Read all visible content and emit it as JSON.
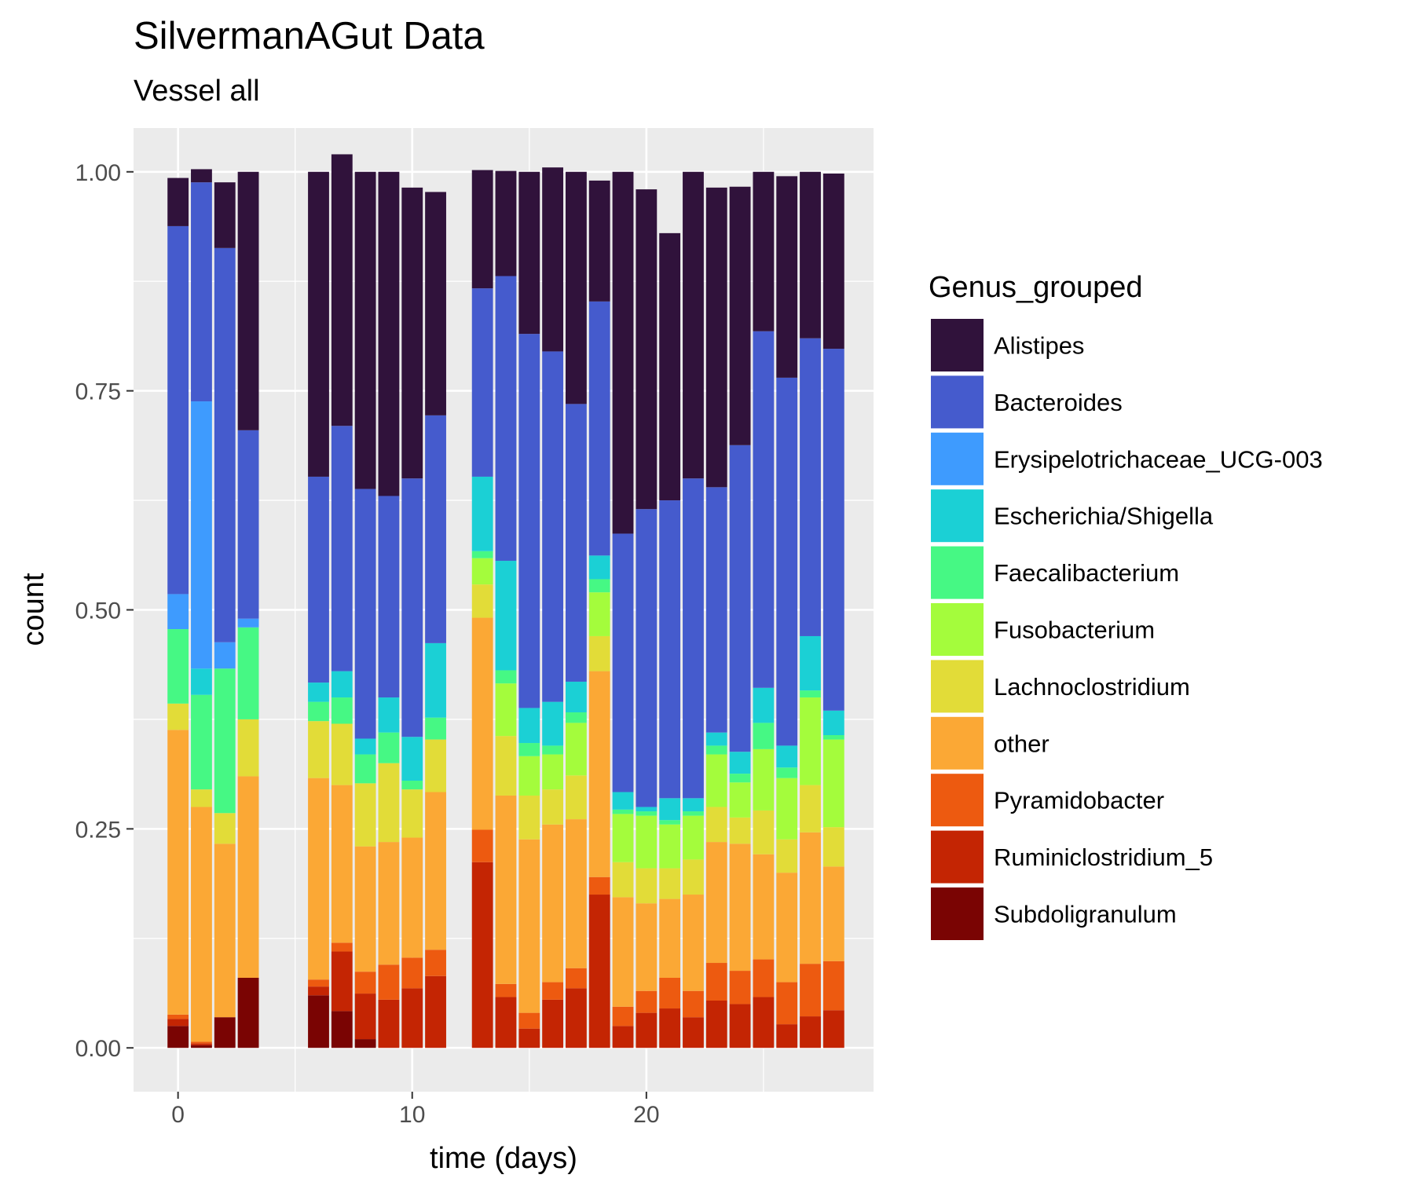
{
  "chart_data": {
    "type": "bar",
    "stacked": true,
    "title": "SilvermanAGut Data",
    "subtitle": "Vessel all",
    "xlabel": "time (days)",
    "ylabel": "count",
    "xlim": [
      -1.9,
      29.7
    ],
    "ylim": [
      -0.05,
      1.05
    ],
    "xticks": [
      {
        "value": 0,
        "label": "0"
      },
      {
        "value": 10,
        "label": "10"
      },
      {
        "value": 20,
        "label": "20"
      }
    ],
    "xminor": [
      5,
      15,
      25
    ],
    "yticks": [
      {
        "value": 0,
        "label": "0.00"
      },
      {
        "value": 0.25,
        "label": "0.25"
      },
      {
        "value": 0.5,
        "label": "0.50"
      },
      {
        "value": 0.75,
        "label": "0.75"
      },
      {
        "value": 1,
        "label": "1.00"
      }
    ],
    "yminor": [
      0.125,
      0.375,
      0.625,
      0.875
    ],
    "background": "#ebebeb",
    "grid": true,
    "legend_position": "right",
    "legend_title": "Genus_grouped",
    "x": [
      0,
      1,
      2,
      3,
      6,
      7,
      8,
      9,
      10,
      11,
      13,
      14,
      15,
      16,
      17,
      18,
      19,
      20,
      21,
      22,
      23,
      24,
      25,
      26,
      27,
      28
    ],
    "series": [
      {
        "name": "Subdoligranulum",
        "color": "#7a0403",
        "values": [
          0.025,
          0.003,
          0.035,
          0.08,
          0.06,
          0.042,
          0.01,
          0,
          0,
          0,
          0,
          0,
          0,
          0,
          0,
          0,
          0,
          0,
          0,
          0,
          0,
          0,
          0,
          0,
          0,
          0
        ]
      },
      {
        "name": "Ruminiclostridium_5",
        "color": "#c42503",
        "values": [
          0.008,
          0.002,
          0,
          0,
          0.01,
          0.068,
          0.052,
          0.055,
          0.068,
          0.082,
          0.212,
          0.058,
          0.022,
          0.055,
          0.068,
          0.175,
          0.025,
          0.04,
          0.045,
          0.035,
          0.054,
          0.05,
          0.058,
          0.027,
          0.036,
          0.043
        ]
      },
      {
        "name": "Pyramidobacter",
        "color": "#ed5a10",
        "values": [
          0.005,
          0.002,
          0,
          0,
          0.008,
          0.01,
          0.025,
          0.04,
          0.035,
          0.03,
          0.037,
          0.015,
          0.018,
          0.02,
          0.023,
          0.02,
          0.022,
          0.025,
          0.035,
          0.03,
          0.043,
          0.038,
          0.043,
          0.048,
          0.06,
          0.056
        ]
      },
      {
        "name": "other",
        "color": "#fba835",
        "values": [
          0.325,
          0.268,
          0.198,
          0.23,
          0.23,
          0.18,
          0.143,
          0.14,
          0.137,
          0.18,
          0.242,
          0.215,
          0.198,
          0.18,
          0.17,
          0.235,
          0.125,
          0.1,
          0.09,
          0.11,
          0.138,
          0.145,
          0.12,
          0.125,
          0.15,
          0.108
        ]
      },
      {
        "name": "Lachnoclostridium",
        "color": "#e2dc38",
        "values": [
          0.03,
          0.02,
          0.035,
          0.065,
          0.065,
          0.07,
          0.072,
          0.09,
          0.055,
          0.06,
          0.038,
          0.068,
          0.05,
          0.04,
          0.05,
          0.04,
          0.04,
          0.04,
          0.035,
          0.04,
          0.04,
          0.03,
          0.05,
          0.038,
          0.054,
          0.045
        ]
      },
      {
        "name": "Fusobacterium",
        "color": "#a4fc3c",
        "values": [
          0,
          0,
          0,
          0,
          0,
          0,
          0,
          0,
          0,
          0,
          0.03,
          0.06,
          0.045,
          0.04,
          0.06,
          0.05,
          0.055,
          0.06,
          0.05,
          0.05,
          0.06,
          0.04,
          0.07,
          0.07,
          0.1,
          0.1
        ]
      },
      {
        "name": "Faecalibacterium",
        "color": "#46f884",
        "values": [
          0.085,
          0.108,
          0.165,
          0.105,
          0.022,
          0.03,
          0.033,
          0.035,
          0.01,
          0.025,
          0.008,
          0.015,
          0.015,
          0.01,
          0.012,
          0.015,
          0.005,
          0.005,
          0.005,
          0.005,
          0.01,
          0.01,
          0.03,
          0.012,
          0.008,
          0.005
        ]
      },
      {
        "name": "Escherichia/Shigella",
        "color": "#1bd0d5",
        "values": [
          0,
          0.03,
          0,
          0,
          0.022,
          0.03,
          0.018,
          0.04,
          0.05,
          0.085,
          0.085,
          0.125,
          0.04,
          0.05,
          0.035,
          0.027,
          0.02,
          0.005,
          0.025,
          0.015,
          0.015,
          0.025,
          0.04,
          0.025,
          0.062,
          0.028
        ]
      },
      {
        "name": "Erysipelotrichaceae_UCG-003",
        "color": "#3e9bfe",
        "values": [
          0.04,
          0.305,
          0.03,
          0.01,
          0,
          0,
          0,
          0,
          0,
          0,
          0,
          0,
          0,
          0,
          0,
          0,
          0,
          0,
          0,
          0,
          0,
          0,
          0,
          0,
          0,
          0
        ]
      },
      {
        "name": "Bacteroides",
        "color": "#455bcd",
        "values": [
          0.42,
          0.25,
          0.45,
          0.215,
          0.235,
          0.28,
          0.285,
          0.23,
          0.295,
          0.26,
          0.215,
          0.325,
          0.427,
          0.4,
          0.317,
          0.29,
          0.295,
          0.34,
          0.34,
          0.365,
          0.28,
          0.35,
          0.407,
          0.42,
          0.34,
          0.413
        ]
      },
      {
        "name": "Alistipes",
        "color": "#30123b",
        "values": [
          0.055,
          0.015,
          0.075,
          0.295,
          0.348,
          0.31,
          0.362,
          0.37,
          0.332,
          0.255,
          0.135,
          0.12,
          0.185,
          0.21,
          0.265,
          0.138,
          0.413,
          0.365,
          0.305,
          0.35,
          0.342,
          0.295,
          0.182,
          0.23,
          0.19,
          0.2
        ]
      }
    ]
  }
}
